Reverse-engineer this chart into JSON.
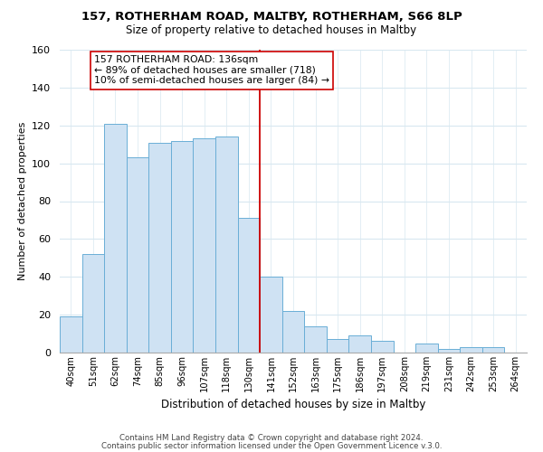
{
  "title": "157, ROTHERHAM ROAD, MALTBY, ROTHERHAM, S66 8LP",
  "subtitle": "Size of property relative to detached houses in Maltby",
  "xlabel": "Distribution of detached houses by size in Maltby",
  "ylabel": "Number of detached properties",
  "bar_labels": [
    "40sqm",
    "51sqm",
    "62sqm",
    "74sqm",
    "85sqm",
    "96sqm",
    "107sqm",
    "118sqm",
    "130sqm",
    "141sqm",
    "152sqm",
    "163sqm",
    "175sqm",
    "186sqm",
    "197sqm",
    "208sqm",
    "219sqm",
    "231sqm",
    "242sqm",
    "253sqm",
    "264sqm"
  ],
  "bar_values": [
    19,
    52,
    121,
    103,
    111,
    112,
    113,
    114,
    71,
    40,
    22,
    14,
    7,
    9,
    6,
    0,
    5,
    2,
    3,
    3,
    0
  ],
  "bar_color": "#cfe2f3",
  "bar_edge_color": "#6aaed6",
  "vline_color": "#cc0000",
  "annotation_title": "157 ROTHERHAM ROAD: 136sqm",
  "annotation_line1": "← 89% of detached houses are smaller (718)",
  "annotation_line2": "10% of semi-detached houses are larger (84) →",
  "annotation_box_edge_color": "#cc0000",
  "footer1": "Contains HM Land Registry data © Crown copyright and database right 2024.",
  "footer2": "Contains public sector information licensed under the Open Government Licence v.3.0.",
  "ylim": [
    0,
    160
  ],
  "yticks": [
    0,
    20,
    40,
    60,
    80,
    100,
    120,
    140,
    160
  ],
  "grid_color": "#d8e8f0",
  "spine_color": "#aaaaaa"
}
